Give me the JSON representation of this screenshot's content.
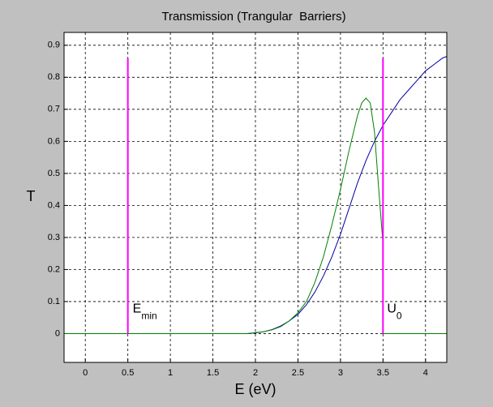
{
  "chart_data": {
    "type": "line",
    "title": "Transmission (Trangular  Barriers)",
    "xlabel": "E (eV)",
    "ylabel": "T",
    "xlim": [
      -0.25,
      4.25
    ],
    "ylim": [
      -0.09,
      0.94
    ],
    "xticks": [
      0,
      0.5,
      1,
      1.5,
      2,
      2.5,
      3,
      3.5,
      4
    ],
    "yticks": [
      0,
      0.1,
      0.2,
      0.3,
      0.4,
      0.5,
      0.6,
      0.7,
      0.8,
      0.9
    ],
    "grid": true,
    "series": [
      {
        "color": "#0000a0",
        "x": [
          1.9,
          2.0,
          2.1,
          2.2,
          2.3,
          2.4,
          2.5,
          2.6,
          2.7,
          2.8,
          2.9,
          3.0,
          3.1,
          3.2,
          3.3,
          3.4,
          3.5,
          3.6,
          3.7,
          3.8,
          3.9,
          4.0,
          4.1,
          4.2,
          4.25
        ],
        "values": [
          0,
          0.002,
          0.006,
          0.013,
          0.024,
          0.04,
          0.06,
          0.09,
          0.13,
          0.18,
          0.24,
          0.31,
          0.39,
          0.47,
          0.54,
          0.6,
          0.65,
          0.69,
          0.73,
          0.76,
          0.79,
          0.82,
          0.84,
          0.86,
          0.865
        ]
      },
      {
        "color": "#008000",
        "x": [
          -0.25,
          1.9,
          2.0,
          2.1,
          2.2,
          2.3,
          2.4,
          2.5,
          2.6,
          2.7,
          2.8,
          2.9,
          3.0,
          3.1,
          3.2,
          3.25,
          3.3,
          3.35,
          3.4,
          3.45,
          3.5,
          3.5,
          4.25
        ],
        "values": [
          0,
          0,
          0.003,
          0.006,
          0.012,
          0.022,
          0.04,
          0.065,
          0.1,
          0.16,
          0.24,
          0.34,
          0.45,
          0.57,
          0.68,
          0.72,
          0.735,
          0.72,
          0.63,
          0.45,
          0.28,
          0,
          0
        ]
      },
      {
        "color": "#ff00ff",
        "x": [
          0.5,
          0.5
        ],
        "values": [
          0,
          0.86
        ]
      },
      {
        "color": "#ff00ff",
        "x": [
          3.5,
          3.5
        ],
        "values": [
          0,
          0.86
        ]
      }
    ],
    "annotations": [
      {
        "text": "E",
        "sub": "min"
      },
      {
        "text": "U",
        "sub": "0"
      }
    ]
  }
}
